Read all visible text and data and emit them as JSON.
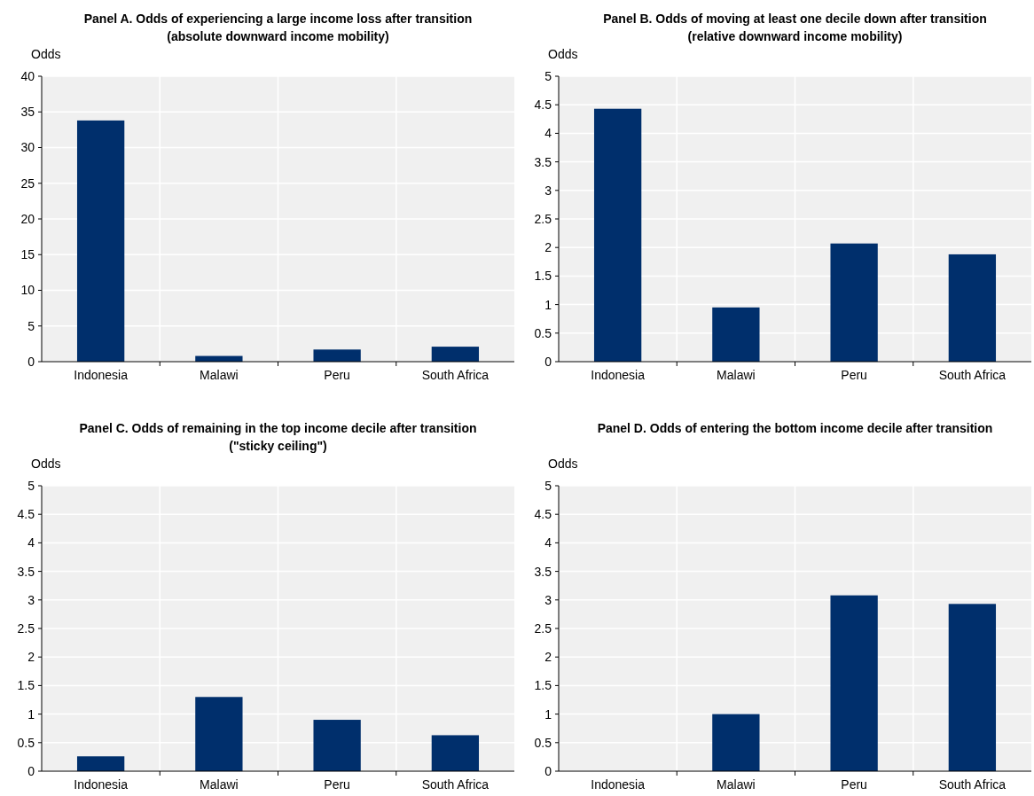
{
  "chart_data": [
    {
      "type": "bar",
      "title": "Panel A. Odds of experiencing a large income loss after transition (absolute downward income mobility)",
      "ylabel": "Odds",
      "categories": [
        "Indonesia",
        "Malawi",
        "Peru",
        "South Africa"
      ],
      "values": [
        33.8,
        0.8,
        1.7,
        2.1
      ],
      "color": "#002f6c",
      "ylim": [
        0,
        40
      ],
      "yticks": [
        0,
        5,
        10,
        15,
        20,
        25,
        30,
        35,
        40
      ],
      "grid": true
    },
    {
      "type": "bar",
      "title": "Panel B. Odds of moving at least one decile down after transition (relative downward income mobility)",
      "ylabel": "Odds",
      "categories": [
        "Indonesia",
        "Malawi",
        "Peru",
        "South Africa"
      ],
      "values": [
        4.43,
        0.95,
        2.07,
        1.88
      ],
      "color": "#002f6c",
      "ylim": [
        0,
        5
      ],
      "yticks": [
        0,
        0.5,
        1,
        1.5,
        2,
        2.5,
        3,
        3.5,
        4,
        4.5,
        5
      ],
      "grid": true
    },
    {
      "type": "bar",
      "title": "Panel C. Odds of remaining in the top income decile after transition (\"sticky ceiling\")",
      "ylabel": "Odds",
      "categories": [
        "Indonesia",
        "Malawi",
        "Peru",
        "South Africa"
      ],
      "values": [
        0.26,
        1.3,
        0.9,
        0.63
      ],
      "color": "#002f6c",
      "ylim": [
        0,
        5
      ],
      "yticks": [
        0,
        0.5,
        1,
        1.5,
        2,
        2.5,
        3,
        3.5,
        4,
        4.5,
        5
      ],
      "grid": true
    },
    {
      "type": "bar",
      "title": "Panel D. Odds of entering the bottom income decile after transition",
      "ylabel": "Odds",
      "categories": [
        "Indonesia",
        "Malawi",
        "Peru",
        "South Africa"
      ],
      "values": [
        null,
        1.0,
        3.08,
        2.93
      ],
      "color": "#002f6c",
      "ylim": [
        0,
        5
      ],
      "yticks": [
        0,
        0.5,
        1,
        1.5,
        2,
        2.5,
        3,
        3.5,
        4,
        4.5,
        5
      ],
      "grid": true
    }
  ]
}
